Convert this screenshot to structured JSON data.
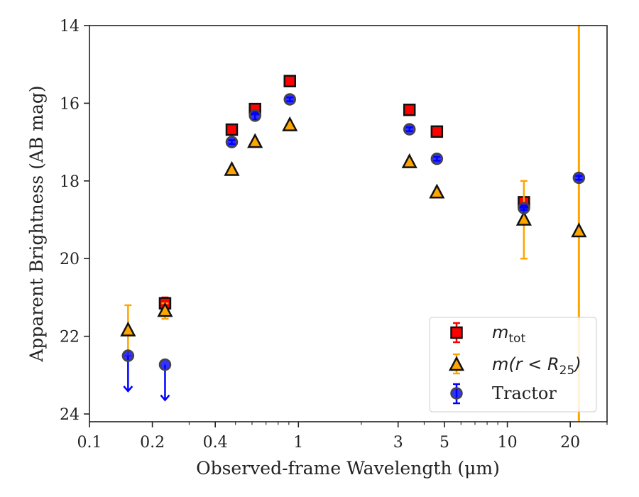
{
  "chart_data": {
    "type": "scatter",
    "xscale": "log",
    "xlim": [
      0.1,
      30
    ],
    "ylim": [
      24.2,
      14
    ],
    "y_inverted": true,
    "xlabel": "Observed-frame Wavelength (μm)",
    "ylabel": "Apparent Brightness (AB mag)",
    "xticks": [
      {
        "v": 0.1,
        "label": "0.1"
      },
      {
        "v": 0.2,
        "label": "0.2"
      },
      {
        "v": 0.4,
        "label": "0.4"
      },
      {
        "v": 1,
        "label": "1"
      },
      {
        "v": 3,
        "label": "3"
      },
      {
        "v": 5,
        "label": "5"
      },
      {
        "v": 10,
        "label": "10"
      },
      {
        "v": 20,
        "label": "20"
      }
    ],
    "yticks": [
      {
        "v": 14,
        "label": "14"
      },
      {
        "v": 16,
        "label": "16"
      },
      {
        "v": 18,
        "label": "18"
      },
      {
        "v": 20,
        "label": "20"
      },
      {
        "v": 22,
        "label": "22"
      },
      {
        "v": 24,
        "label": "24"
      }
    ],
    "legend_position": "bottom-right",
    "series": [
      {
        "name": "m_tot",
        "marker": "square",
        "color": "#ff0000",
        "edge": "#111111",
        "points": [
          {
            "x": 0.23,
            "y": 21.15,
            "err": 0.15
          },
          {
            "x": 0.48,
            "y": 16.68,
            "err": 0.05
          },
          {
            "x": 0.62,
            "y": 16.15,
            "err": 0.05
          },
          {
            "x": 0.91,
            "y": 15.43,
            "err": 0.05
          },
          {
            "x": 3.4,
            "y": 16.17,
            "err": 0.05
          },
          {
            "x": 4.6,
            "y": 16.73,
            "err": 0.05
          },
          {
            "x": 12.0,
            "y": 18.55,
            "err": 0.1
          }
        ]
      },
      {
        "name": "m(r < R25)",
        "marker": "triangle",
        "color": "#ffa500",
        "edge": "#111111",
        "points": [
          {
            "x": 0.153,
            "y": 21.85,
            "err": 0.65
          },
          {
            "x": 0.23,
            "y": 21.35,
            "err": 0.2
          },
          {
            "x": 0.48,
            "y": 17.72,
            "err": 0
          },
          {
            "x": 0.62,
            "y": 17.0,
            "err": 0
          },
          {
            "x": 0.91,
            "y": 16.57,
            "err": 0
          },
          {
            "x": 3.4,
            "y": 17.52,
            "err": 0
          },
          {
            "x": 4.6,
            "y": 18.3,
            "err": 0
          },
          {
            "x": 12.0,
            "y": 19.0,
            "err": 1.0
          },
          {
            "x": 22.0,
            "y": 19.3,
            "err": 99
          }
        ]
      },
      {
        "name": "Tractor",
        "marker": "circle",
        "color": "#0000ff",
        "edge": "#444444",
        "points": [
          {
            "x": 0.153,
            "y": 22.5,
            "upper_limit": true
          },
          {
            "x": 0.23,
            "y": 22.73,
            "upper_limit": true
          },
          {
            "x": 0.48,
            "y": 17.0,
            "err": 0.05
          },
          {
            "x": 0.62,
            "y": 16.32,
            "err": 0.1
          },
          {
            "x": 0.91,
            "y": 15.9,
            "err": 0.05
          },
          {
            "x": 3.4,
            "y": 16.67,
            "err": 0.05
          },
          {
            "x": 4.6,
            "y": 17.43,
            "err": 0.05
          },
          {
            "x": 12.0,
            "y": 18.7,
            "err": 0.05
          },
          {
            "x": 22.0,
            "y": 17.92,
            "err": 0.05
          }
        ]
      }
    ]
  },
  "legend": {
    "mtot": {
      "symbol": "m",
      "sub": "tot"
    },
    "mr25": {
      "symbol": "m",
      "pre": "(r < R",
      "sub": "25",
      "post": ")"
    },
    "tractor": {
      "label": "Tractor"
    }
  }
}
